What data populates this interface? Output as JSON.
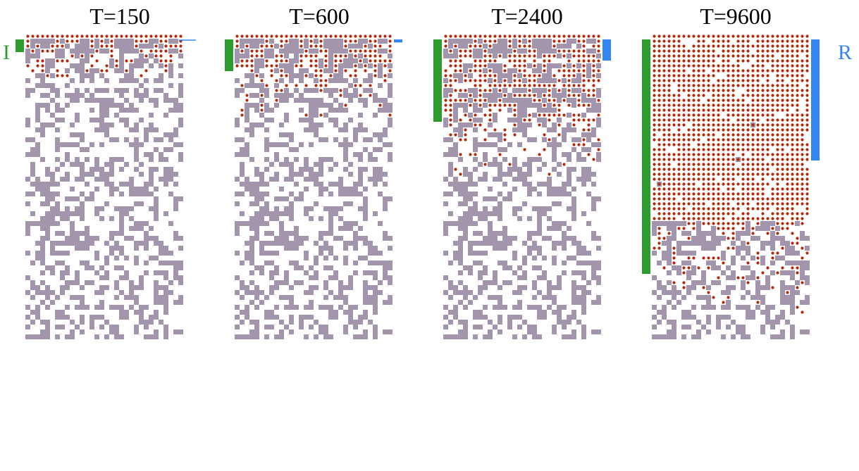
{
  "panels": [
    {
      "title": "T=150",
      "ingress_rows": 2.0,
      "ring_rows": 0.2
    },
    {
      "title": "T=600",
      "ingress_rows": 5.0,
      "ring_rows": 0.5
    },
    {
      "title": "T=2400",
      "ingress_rows": 13.0,
      "ring_rows": 3.5
    },
    {
      "title": "T=9600",
      "ingress_rows": 37.0,
      "ring_rows": 20.0
    }
  ],
  "labels": {
    "left": "I",
    "right": "R"
  },
  "grid": {
    "cols": 32,
    "rows": 62
  },
  "colors": {
    "obstacle": "#a396ac",
    "particle": "#b22a0c",
    "ingress_bar": "#2e9b2e",
    "ring_bar": "#3385f0",
    "left_label": "#2e9b2e",
    "right_label": "#3385f0"
  }
}
